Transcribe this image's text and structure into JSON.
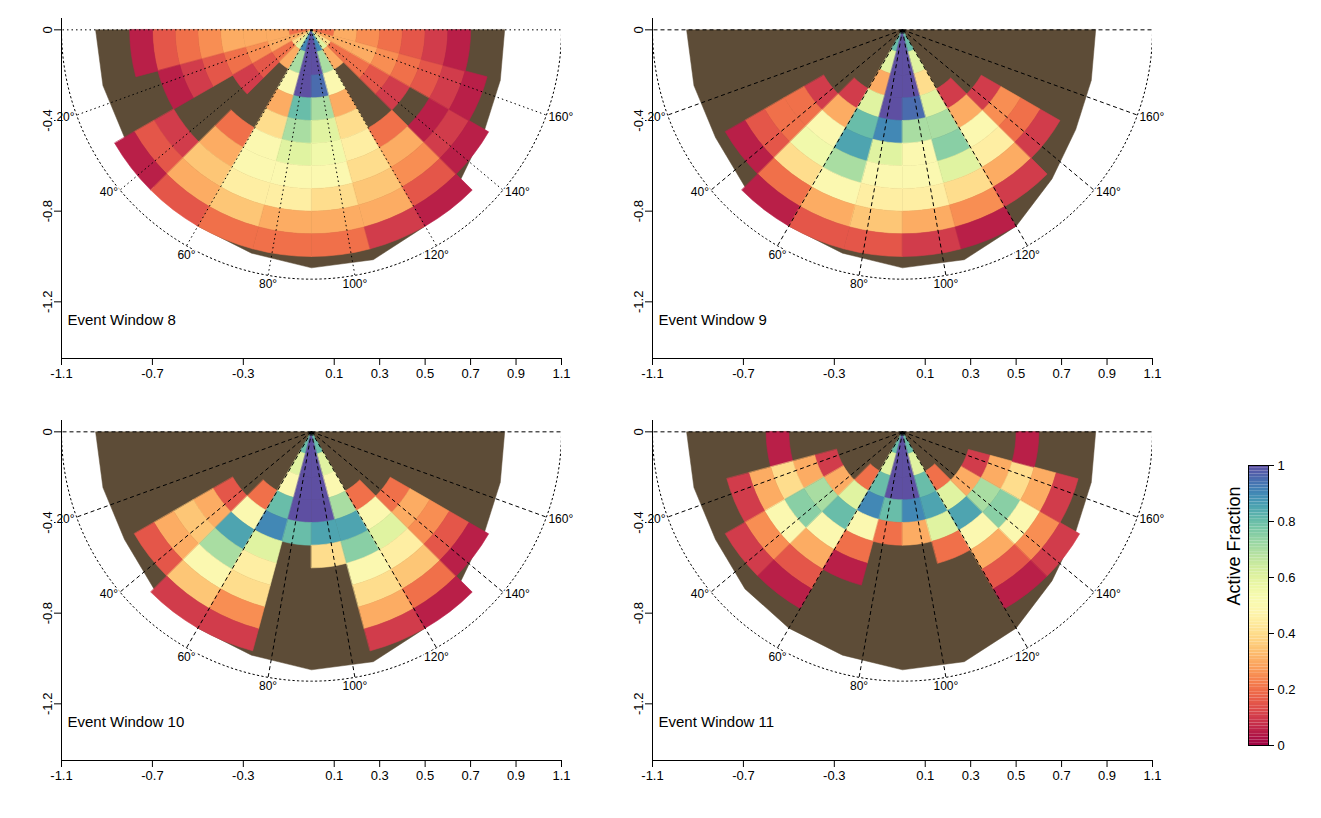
{
  "chart_data": [
    {
      "type": "heatmap",
      "title": "Event Window 8",
      "xlim": [
        -1.1,
        1.1
      ],
      "xticks": [
        -1.1,
        -0.7,
        -0.3,
        0.1,
        0.3,
        0.5,
        0.7,
        0.9,
        1.1
      ],
      "ylim": [
        -1.45,
        0.05
      ],
      "yticks": [
        0,
        -0.4,
        -0.8,
        -1.2
      ],
      "line_style": "dotted",
      "arc_radius": 1.1,
      "angle_ticks": [
        {
          "value": 20,
          "label": "20°"
        },
        {
          "value": 40,
          "label": "40°"
        },
        {
          "value": 60,
          "label": "60°"
        },
        {
          "value": 80,
          "label": "80°"
        },
        {
          "value": 100,
          "label": "100°"
        },
        {
          "value": 120,
          "label": "120°"
        },
        {
          "value": 140,
          "label": "140°"
        },
        {
          "value": 160,
          "label": "160°"
        }
      ],
      "angle_bins": [
        0,
        15,
        30,
        45,
        60,
        75,
        90,
        105,
        120,
        135,
        150,
        165,
        180
      ],
      "radius_bins": [
        0,
        0.1,
        0.2,
        0.3,
        0.4,
        0.5,
        0.6,
        0.7,
        0.8,
        0.9,
        1.0
      ],
      "delta_extent": [
        0.95,
        0.95,
        0.95,
        0.98,
        1.0,
        1.02,
        1.05,
        1.05,
        1.0,
        0.93,
        0.88,
        0.86,
        0.85
      ],
      "active_fraction": [
        [
          0.2,
          0.3,
          0.4,
          0.6,
          0.9,
          1,
          1,
          0.9,
          0.6,
          0.4,
          0.3,
          0.2
        ],
        [
          0.3,
          0.3,
          0.2,
          0.3,
          0.7,
          1,
          1,
          0.7,
          0.3,
          0.2,
          0.3,
          0.3
        ],
        [
          0.3,
          0.25,
          0.15,
          null,
          0.5,
          1,
          0.95,
          0.5,
          null,
          0.2,
          0.3,
          0.25
        ],
        [
          0.3,
          0.2,
          0.1,
          null,
          0.3,
          0.8,
          0.7,
          0.3,
          null,
          0.15,
          0.25,
          0.2
        ],
        [
          0.25,
          0.15,
          null,
          null,
          0.4,
          0.7,
          0.6,
          0.4,
          null,
          0.1,
          0.2,
          0.15
        ],
        [
          0.2,
          0.1,
          null,
          0.2,
          0.5,
          0.6,
          0.55,
          0.45,
          0.2,
          null,
          0.15,
          0.1
        ],
        [
          0.15,
          0.05,
          null,
          0.3,
          0.5,
          0.5,
          0.5,
          0.4,
          0.3,
          0.05,
          0.1,
          0.05
        ],
        [
          0.05,
          null,
          0.1,
          0.35,
          0.45,
          0.45,
          0.4,
          0.35,
          0.25,
          0.1,
          0.05,
          null
        ],
        [
          null,
          null,
          0.15,
          0.3,
          0.35,
          0.3,
          0.3,
          0.3,
          0.15,
          0.05,
          null,
          null
        ],
        [
          null,
          null,
          0.05,
          0.15,
          0.2,
          0.2,
          0.2,
          0.1,
          0.05,
          null,
          null,
          null
        ]
      ]
    },
    {
      "type": "heatmap",
      "title": "Event Window 9",
      "xlim": [
        -1.1,
        1.1
      ],
      "xticks": [
        -1.1,
        -0.7,
        -0.3,
        0.1,
        0.3,
        0.5,
        0.7,
        0.9,
        1.1
      ],
      "ylim": [
        -1.45,
        0.05
      ],
      "yticks": [
        0,
        -0.4,
        -0.8,
        -1.2
      ],
      "line_style": "dashed",
      "arc_radius": 1.1,
      "angle_ticks": [
        {
          "value": 20,
          "label": "20°"
        },
        {
          "value": 40,
          "label": "40°"
        },
        {
          "value": 60,
          "label": "60°"
        },
        {
          "value": 80,
          "label": "80°"
        },
        {
          "value": 100,
          "label": "100°"
        },
        {
          "value": 120,
          "label": "120°"
        },
        {
          "value": 140,
          "label": "140°"
        },
        {
          "value": 160,
          "label": "160°"
        }
      ],
      "angle_bins": [
        0,
        15,
        30,
        45,
        60,
        75,
        90,
        105,
        120,
        135,
        150,
        165,
        180
      ],
      "radius_bins": [
        0,
        0.1,
        0.2,
        0.3,
        0.4,
        0.5,
        0.6,
        0.7,
        0.8,
        0.9,
        1.0
      ],
      "delta_extent": [
        0.95,
        0.95,
        0.95,
        0.98,
        1.0,
        1.02,
        1.05,
        1.05,
        1.0,
        0.93,
        0.88,
        0.86,
        0.85
      ],
      "active_fraction": [
        [
          null,
          null,
          null,
          null,
          0.8,
          1,
          1,
          0.8,
          null,
          null,
          null,
          null
        ],
        [
          null,
          null,
          null,
          null,
          0.6,
          1,
          1,
          0.6,
          null,
          null,
          null,
          null
        ],
        [
          null,
          null,
          null,
          null,
          0.3,
          1,
          1,
          0.4,
          null,
          null,
          null,
          null
        ],
        [
          null,
          null,
          null,
          0.1,
          0.6,
          1,
          0.95,
          0.6,
          0.1,
          null,
          null,
          null
        ],
        [
          null,
          null,
          0.1,
          0.3,
          0.8,
          0.9,
          0.7,
          0.7,
          0.3,
          0.1,
          null,
          null
        ],
        [
          null,
          null,
          0.2,
          0.5,
          0.85,
          0.6,
          0.5,
          0.75,
          0.5,
          0.25,
          null,
          null
        ],
        [
          null,
          null,
          0.2,
          0.55,
          0.7,
          0.5,
          0.5,
          0.6,
          0.45,
          0.2,
          null,
          null
        ],
        [
          null,
          null,
          0.15,
          0.4,
          0.5,
          0.45,
          0.45,
          0.4,
          0.3,
          0.1,
          null,
          null
        ],
        [
          null,
          null,
          0.05,
          0.2,
          0.3,
          0.35,
          0.3,
          0.25,
          0.1,
          null,
          null,
          null
        ],
        [
          null,
          null,
          null,
          0.05,
          0.15,
          0.15,
          0.1,
          0.05,
          null,
          null,
          null,
          null
        ]
      ]
    },
    {
      "type": "heatmap",
      "title": "Event Window 10",
      "xlim": [
        -1.1,
        1.1
      ],
      "xticks": [
        -1.1,
        -0.7,
        -0.3,
        0.1,
        0.3,
        0.5,
        0.7,
        0.9,
        1.1
      ],
      "ylim": [
        -1.45,
        0.05
      ],
      "yticks": [
        0,
        -0.4,
        -0.8,
        -1.2
      ],
      "line_style": "dashed",
      "arc_radius": 1.1,
      "angle_ticks": [
        {
          "value": 20,
          "label": "20°"
        },
        {
          "value": 40,
          "label": "40°"
        },
        {
          "value": 60,
          "label": "60°"
        },
        {
          "value": 80,
          "label": "80°"
        },
        {
          "value": 100,
          "label": "100°"
        },
        {
          "value": 120,
          "label": "120°"
        },
        {
          "value": 140,
          "label": "140°"
        },
        {
          "value": 160,
          "label": "160°"
        }
      ],
      "angle_bins": [
        0,
        15,
        30,
        45,
        60,
        75,
        90,
        105,
        120,
        135,
        150,
        165,
        180
      ],
      "radius_bins": [
        0,
        0.1,
        0.2,
        0.3,
        0.4,
        0.5,
        0.6,
        0.7,
        0.8,
        0.9,
        1.0
      ],
      "delta_extent": [
        0.95,
        0.95,
        0.95,
        0.98,
        1.0,
        1.02,
        1.05,
        1.05,
        1.0,
        0.93,
        0.88,
        0.86,
        0.85
      ],
      "active_fraction": [
        [
          null,
          null,
          null,
          null,
          0.8,
          1,
          1,
          0.8,
          null,
          null,
          null,
          null
        ],
        [
          null,
          null,
          null,
          null,
          0.6,
          1,
          1,
          0.6,
          null,
          null,
          null,
          null
        ],
        [
          null,
          null,
          null,
          null,
          0.5,
          1,
          1,
          0.5,
          null,
          null,
          null,
          null
        ],
        [
          null,
          null,
          null,
          0.2,
          0.8,
          1,
          1,
          0.7,
          0.2,
          null,
          null,
          null
        ],
        [
          null,
          null,
          0.15,
          0.5,
          0.9,
          0.8,
          0.85,
          0.85,
          0.5,
          0.2,
          null,
          null
        ],
        [
          null,
          null,
          0.3,
          0.85,
          0.6,
          null,
          0.4,
          0.75,
          0.6,
          0.3,
          null,
          null
        ],
        [
          null,
          null,
          0.35,
          0.7,
          0.45,
          null,
          null,
          0.5,
          0.45,
          0.25,
          null,
          null
        ],
        [
          null,
          null,
          0.3,
          0.5,
          0.4,
          null,
          null,
          0.4,
          0.35,
          0.15,
          null,
          null
        ],
        [
          null,
          null,
          0.15,
          0.35,
          0.25,
          null,
          null,
          0.3,
          0.2,
          0.05,
          null,
          null
        ],
        [
          null,
          null,
          null,
          0.1,
          0.1,
          null,
          null,
          0.1,
          0.05,
          null,
          null,
          null
        ]
      ]
    },
    {
      "type": "heatmap",
      "title": "Event Window 11",
      "xlim": [
        -1.1,
        1.1
      ],
      "xticks": [
        -1.1,
        -0.7,
        -0.3,
        0.1,
        0.3,
        0.5,
        0.7,
        0.9,
        1.1
      ],
      "ylim": [
        -1.45,
        0.05
      ],
      "yticks": [
        0,
        -0.4,
        -0.8,
        -1.2
      ],
      "line_style": "dashed",
      "arc_radius": 1.1,
      "angle_ticks": [
        {
          "value": 20,
          "label": "20°"
        },
        {
          "value": 40,
          "label": "40°"
        },
        {
          "value": 60,
          "label": "60°"
        },
        {
          "value": 80,
          "label": "80°"
        },
        {
          "value": 100,
          "label": "100°"
        },
        {
          "value": 120,
          "label": "120°"
        },
        {
          "value": 140,
          "label": "140°"
        },
        {
          "value": 160,
          "label": "160°"
        }
      ],
      "angle_bins": [
        0,
        15,
        30,
        45,
        60,
        75,
        90,
        105,
        120,
        135,
        150,
        165,
        180
      ],
      "radius_bins": [
        0,
        0.1,
        0.2,
        0.3,
        0.4,
        0.5,
        0.6,
        0.7,
        0.8,
        0.9,
        1.0
      ],
      "delta_extent": [
        0.95,
        0.95,
        0.95,
        0.98,
        1.0,
        1.02,
        1.05,
        1.05,
        1.0,
        0.93,
        0.88,
        0.86,
        0.85
      ],
      "active_fraction": [
        [
          null,
          null,
          null,
          null,
          0.8,
          1,
          1,
          0.8,
          null,
          null,
          null,
          null
        ],
        [
          null,
          null,
          null,
          null,
          0.6,
          1,
          1,
          0.6,
          null,
          null,
          null,
          null
        ],
        [
          null,
          null,
          null,
          0.2,
          0.8,
          1,
          1,
          0.8,
          0.2,
          null,
          null,
          null
        ],
        [
          null,
          0.1,
          0.3,
          0.6,
          0.9,
          0.8,
          0.9,
          0.85,
          0.6,
          0.3,
          0.1,
          null
        ],
        [
          null,
          0.3,
          0.7,
          0.8,
          0.5,
          0.2,
          0.3,
          0.6,
          0.85,
          0.7,
          0.3,
          null
        ],
        [
          0.05,
          0.4,
          0.75,
          0.5,
          0.2,
          null,
          null,
          0.2,
          0.5,
          0.75,
          0.4,
          0.05
        ],
        [
          null,
          0.3,
          0.5,
          0.3,
          0.05,
          null,
          null,
          null,
          0.3,
          0.5,
          0.3,
          null
        ],
        [
          null,
          0.1,
          0.25,
          0.15,
          null,
          null,
          null,
          null,
          0.15,
          0.25,
          0.1,
          null
        ],
        [
          null,
          null,
          0.1,
          0.05,
          null,
          null,
          null,
          null,
          0.05,
          0.1,
          null,
          null
        ],
        [
          null,
          null,
          null,
          null,
          null,
          null,
          null,
          null,
          null,
          null,
          null,
          null
        ]
      ],
      "colorbar": {
        "label": "Active Fraction",
        "lim": [
          0,
          1
        ],
        "ticks": [
          0,
          0.2,
          0.4,
          0.6,
          0.8,
          1
        ]
      }
    }
  ]
}
